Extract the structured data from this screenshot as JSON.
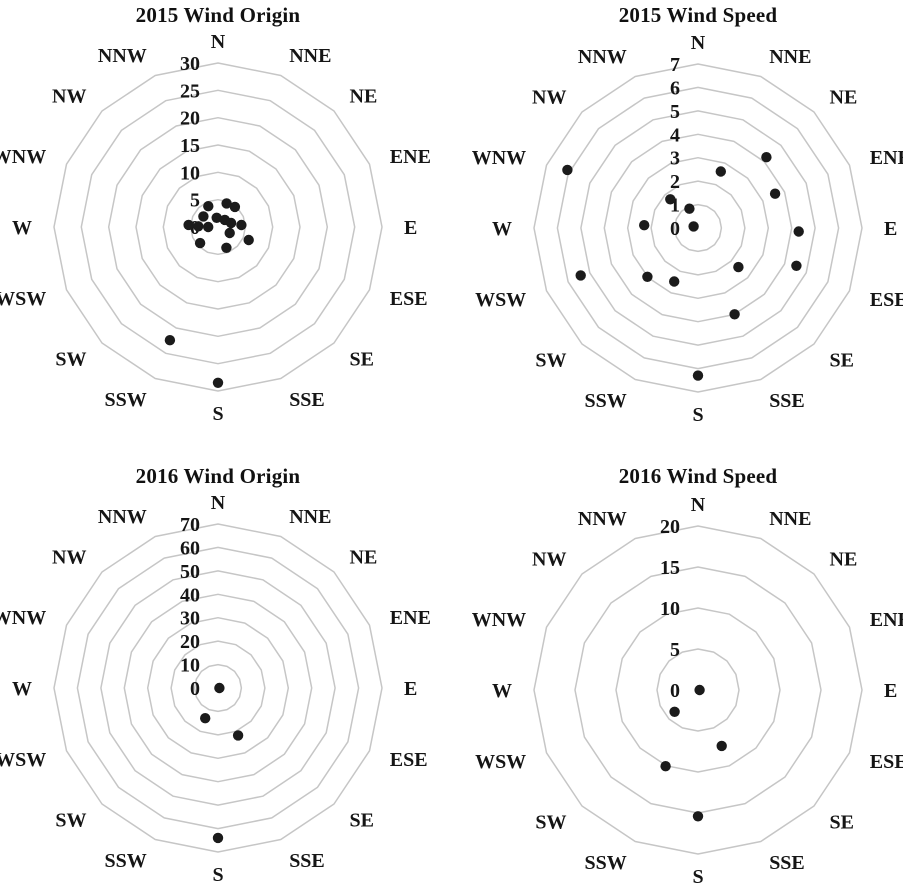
{
  "page": {
    "background_color": "#ffffff"
  },
  "style": {
    "grid_line_color": "#c6c6c6",
    "point_color": "#1b1b1b",
    "text_color": "#151515"
  },
  "compass_labels": [
    "N",
    "NNE",
    "NE",
    "ENE",
    "E",
    "ESE",
    "SE",
    "SSE",
    "S",
    "SSW",
    "SW",
    "WSW",
    "W",
    "WNW",
    "NW",
    "NNW"
  ],
  "chart_data": [
    {
      "type": "scatter",
      "projection": "polar",
      "title": "2015 Wind Origin",
      "radial_ticks": [
        0,
        5,
        10,
        15,
        20,
        25,
        30
      ],
      "rmax": 30,
      "grid": "concentric 16-sided polygon rings, no radial spokes",
      "legend": "none",
      "points": [
        {
          "dir": "N",
          "angle_deg": 352,
          "value": 1.7
        },
        {
          "dir": "NNE",
          "angle_deg": 20,
          "value": 4.6
        },
        {
          "dir": "NE",
          "angle_deg": 40,
          "value": 4.8
        },
        {
          "dir": "NE",
          "angle_deg": 44,
          "value": 1.8
        },
        {
          "dir": "ENE",
          "angle_deg": 73,
          "value": 2.5
        },
        {
          "dir": "E",
          "angle_deg": 85,
          "value": 4.3
        },
        {
          "dir": "ESE",
          "angle_deg": 113,
          "value": 6.1
        },
        {
          "dir": "SE",
          "angle_deg": 117,
          "value": 2.4
        },
        {
          "dir": "SSE",
          "angle_deg": 158,
          "value": 4.1
        },
        {
          "dir": "S",
          "angle_deg": 180,
          "value": 28.5
        },
        {
          "dir": "SSW",
          "angle_deg": 203,
          "value": 22.5
        },
        {
          "dir": "SW",
          "angle_deg": 228,
          "value": 4.4
        },
        {
          "dir": "W",
          "angle_deg": 270,
          "value": 1.8
        },
        {
          "dir": "W",
          "angle_deg": 272,
          "value": 3.6
        },
        {
          "dir": "W",
          "angle_deg": 274,
          "value": 5.4
        },
        {
          "dir": "NW",
          "angle_deg": 306,
          "value": 3.3
        },
        {
          "dir": "NNW",
          "angle_deg": 335,
          "value": 4.2
        }
      ]
    },
    {
      "type": "scatter",
      "projection": "polar",
      "title": "2015 Wind Speed",
      "radial_ticks": [
        0,
        1,
        2,
        3,
        4,
        5,
        6,
        7
      ],
      "rmax": 7,
      "grid": "concentric 16-sided polygon rings, no radial spokes",
      "legend": "none",
      "points": [
        {
          "dir": "N",
          "angle_deg": 290,
          "value": 0.2
        },
        {
          "dir": "NNE",
          "angle_deg": 22,
          "value": 2.6
        },
        {
          "dir": "NE",
          "angle_deg": 44,
          "value": 4.2
        },
        {
          "dir": "ENE",
          "angle_deg": 66,
          "value": 3.6
        },
        {
          "dir": "E",
          "angle_deg": 92,
          "value": 4.3
        },
        {
          "dir": "ESE",
          "angle_deg": 111,
          "value": 4.5
        },
        {
          "dir": "SE",
          "angle_deg": 134,
          "value": 2.4
        },
        {
          "dir": "SSE",
          "angle_deg": 157,
          "value": 4.0
        },
        {
          "dir": "S",
          "angle_deg": 180,
          "value": 6.3
        },
        {
          "dir": "SSW",
          "angle_deg": 204,
          "value": 2.5
        },
        {
          "dir": "SW",
          "angle_deg": 226,
          "value": 3.0
        },
        {
          "dir": "WSW",
          "angle_deg": 248,
          "value": 5.4
        },
        {
          "dir": "W",
          "angle_deg": 273,
          "value": 2.3
        },
        {
          "dir": "WNW",
          "angle_deg": 294,
          "value": 6.1
        },
        {
          "dir": "NW",
          "angle_deg": 316,
          "value": 1.7
        },
        {
          "dir": "NNW",
          "angle_deg": 336,
          "value": 0.9
        }
      ]
    },
    {
      "type": "scatter",
      "projection": "polar",
      "title": "2016 Wind Origin",
      "radial_ticks": [
        0,
        10,
        20,
        30,
        40,
        50,
        60,
        70
      ],
      "rmax": 70,
      "grid": "concentric 16-sided polygon rings, no radial spokes",
      "legend": "none",
      "points": [
        {
          "dir": "E",
          "angle_deg": 90,
          "value": 0.6
        },
        {
          "dir": "SSW",
          "angle_deg": 203,
          "value": 14
        },
        {
          "dir": "SSE",
          "angle_deg": 157,
          "value": 22
        },
        {
          "dir": "S",
          "angle_deg": 180,
          "value": 64
        }
      ]
    },
    {
      "type": "scatter",
      "projection": "polar",
      "title": "2016 Wind Speed",
      "radial_ticks": [
        0,
        5,
        10,
        15,
        20
      ],
      "rmax": 20,
      "grid": "concentric 16-sided polygon rings, no radial spokes",
      "legend": "none",
      "points": [
        {
          "dir": "E",
          "angle_deg": 90,
          "value": 0.2
        },
        {
          "dir": "SW",
          "angle_deg": 227,
          "value": 3.9
        },
        {
          "dir": "SSE",
          "angle_deg": 157,
          "value": 7.4
        },
        {
          "dir": "SSW",
          "angle_deg": 203,
          "value": 10.1
        },
        {
          "dir": "S",
          "angle_deg": 180,
          "value": 15.4
        }
      ]
    }
  ]
}
